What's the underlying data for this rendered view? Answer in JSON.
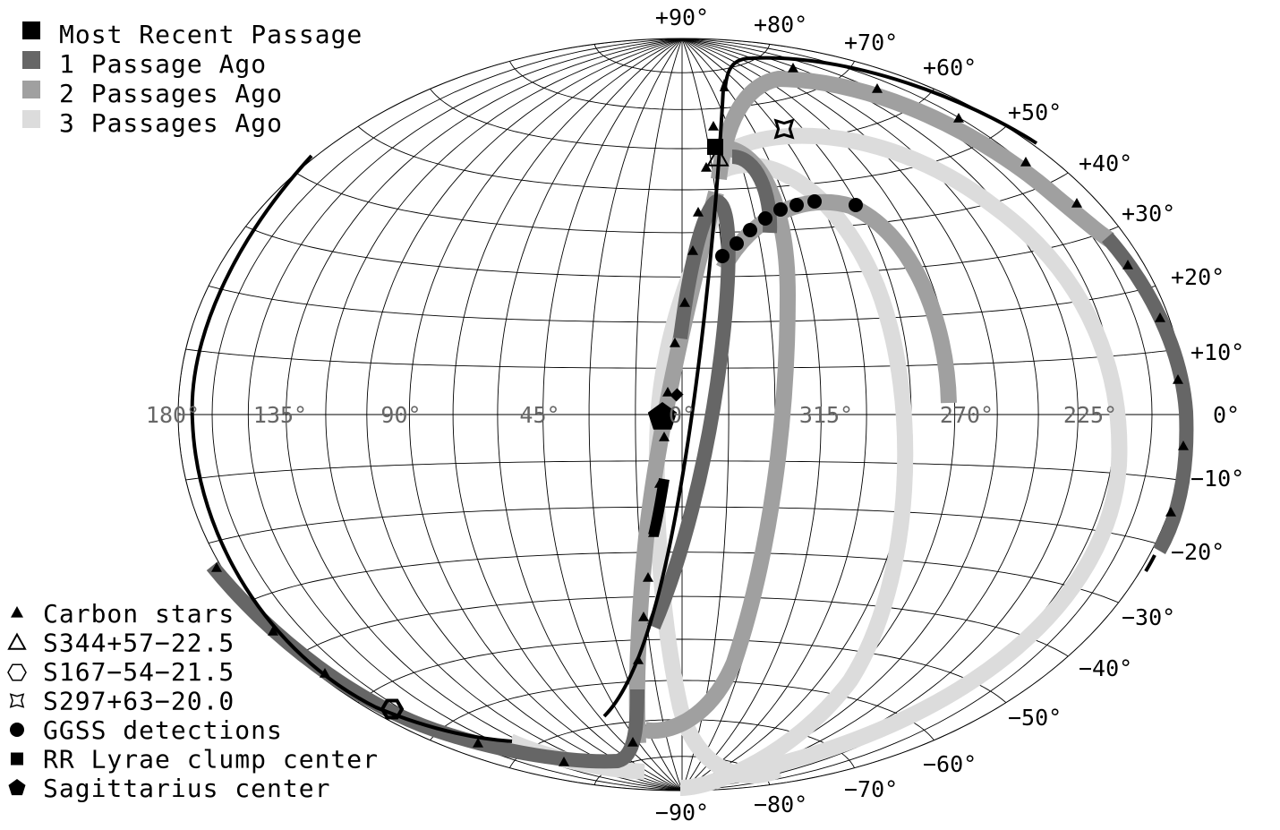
{
  "passage_legend": [
    {
      "label": "Most Recent Passage",
      "color": "#000000"
    },
    {
      "label": "1 Passage Ago",
      "color": "#666666"
    },
    {
      "label": "2 Passages Ago",
      "color": "#a0a0a0"
    },
    {
      "label": "3 Passages Ago",
      "color": "#dcdcdc"
    }
  ],
  "symbol_legend": [
    {
      "label": "Carbon stars",
      "symbol": "filled-triangle-icon"
    },
    {
      "label": "S344+57−22.5",
      "symbol": "open-triangle-icon"
    },
    {
      "label": "S167−54−21.5",
      "symbol": "open-hexagon-icon"
    },
    {
      "label": "S297+63−20.0",
      "symbol": "open-star-icon"
    },
    {
      "label": "GGSS detections",
      "symbol": "filled-circle-icon"
    },
    {
      "label": "RR Lyrae clump center",
      "symbol": "filled-square-icon"
    },
    {
      "label": "Sagittarius center",
      "symbol": "filled-pentagon-icon"
    }
  ],
  "longitude_labels": [
    "180°",
    "135°",
    "90°",
    "45°",
    "0°",
    "315°",
    "270°",
    "225°"
  ],
  "right_edge_label": "0°",
  "top_label": "+90°",
  "bottom_label": "−90°",
  "latitude_labels_north": [
    "+80°",
    "+70°",
    "+60°",
    "+50°",
    "+40°",
    "+30°",
    "+20°",
    "+10°"
  ],
  "latitude_labels_south": [
    "−10°",
    "−20°",
    "−30°",
    "−40°",
    "−50°",
    "−60°",
    "−70°",
    "−80°"
  ]
}
